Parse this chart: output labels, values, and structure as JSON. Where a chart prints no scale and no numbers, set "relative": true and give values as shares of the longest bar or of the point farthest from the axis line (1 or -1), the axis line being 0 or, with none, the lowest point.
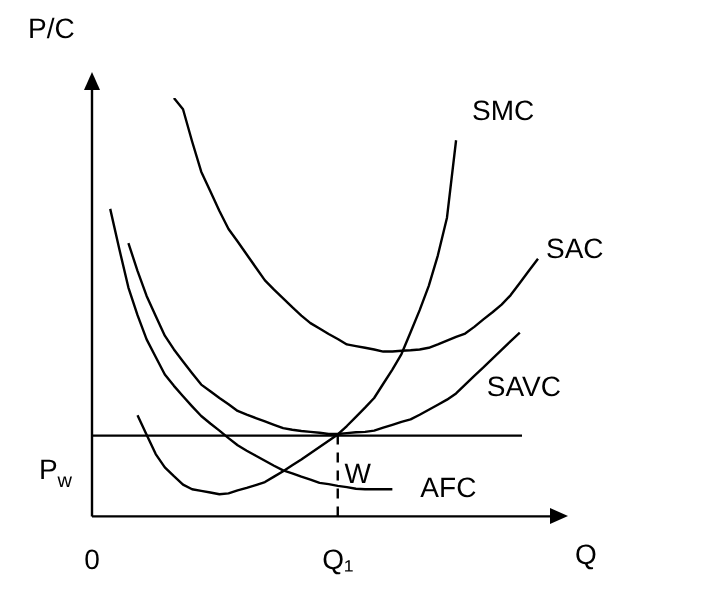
{
  "chart_data": {
    "type": "line",
    "relative": true,
    "xlabel": "Q",
    "ylabel": "P/C",
    "legend": false,
    "grid": false,
    "marker": "none",
    "line_style": "solid",
    "categories": [
      "0",
      null,
      null,
      null,
      null,
      null,
      null,
      null,
      null,
      null,
      null,
      null,
      null,
      null,
      null,
      null,
      null,
      null,
      null,
      null,
      null,
      null,
      null,
      null,
      null,
      null,
      null,
      "Q₁",
      null,
      null,
      null,
      null,
      null,
      null,
      null,
      null,
      null,
      null,
      null,
      null,
      null,
      null,
      null,
      null,
      null,
      null,
      null,
      null,
      null,
      null
    ],
    "series": [
      {
        "name": "SMC",
        "color": "#000000",
        "values": [
          null,
          null,
          null,
          null,
          null,
          0.242,
          0.195,
          0.149,
          0.117,
          0.096,
          0.076,
          0.065,
          0.061,
          0.057,
          0.053,
          0.055,
          0.062,
          0.068,
          0.075,
          0.082,
          0.095,
          0.108,
          0.122,
          0.136,
          0.151,
          0.166,
          0.181,
          0.196,
          0.216,
          0.238,
          0.26,
          0.283,
          0.317,
          0.351,
          0.388,
          0.44,
          0.493,
          0.551,
          0.624,
          0.714,
          0.899,
          null,
          null,
          null,
          null,
          null,
          null,
          null,
          null,
          null
        ]
      },
      {
        "name": "SAC",
        "color": "#000000",
        "values": [
          null,
          null,
          null,
          null,
          null,
          null,
          null,
          null,
          null,
          1,
          0.973,
          0.896,
          0.824,
          0.777,
          0.73,
          0.687,
          0.657,
          0.626,
          0.595,
          0.564,
          0.542,
          0.521,
          0.5,
          0.48,
          0.462,
          0.449,
          0.436,
          0.424,
          0.411,
          0.407,
          0.403,
          0.399,
          0.394,
          0.394,
          0.396,
          0.397,
          0.399,
          0.403,
          0.411,
          0.42,
          0.429,
          0.437,
          0.453,
          0.471,
          0.488,
          0.506,
          0.529,
          0.558,
          0.587,
          0.616
        ]
      },
      {
        "name": "SAVC",
        "color": "#000000",
        "values": [
          null,
          null,
          null,
          null,
          0.653,
          0.587,
          0.527,
          0.479,
          0.432,
          0.399,
          0.37,
          0.342,
          0.315,
          0.299,
          0.283,
          0.268,
          0.252,
          0.243,
          0.235,
          0.227,
          0.219,
          0.211,
          0.207,
          0.204,
          0.202,
          0.2,
          0.197,
          0.197,
          0.199,
          0.201,
          0.202,
          0.205,
          0.212,
          0.219,
          0.226,
          0.232,
          0.243,
          0.255,
          0.267,
          0.279,
          0.294,
          0.315,
          0.336,
          0.356,
          0.377,
          0.398,
          0.419,
          0.439,
          null,
          null
        ]
      },
      {
        "name": "AFC",
        "color": "#000000",
        "values": [
          null,
          null,
          0.735,
          0.639,
          0.547,
          0.481,
          0.423,
          0.381,
          0.339,
          0.312,
          0.287,
          0.263,
          0.24,
          0.222,
          0.205,
          0.187,
          0.17,
          0.157,
          0.145,
          0.133,
          0.121,
          0.11,
          0.103,
          0.095,
          0.088,
          0.08,
          0.077,
          0.073,
          0.07,
          0.066,
          0.065,
          0.065,
          0.065,
          0.065,
          null,
          null,
          null,
          null,
          null,
          null,
          null,
          null,
          null,
          null,
          null,
          null,
          null,
          null,
          null,
          null
        ]
      }
    ],
    "ref_lines": [
      {
        "axis": "y",
        "value": 0.193,
        "label": "P$_{w}$",
        "color": "#000000"
      },
      {
        "axis": "x",
        "value": "Q₁",
        "color": "#000000",
        "line_style": "dashed"
      }
    ],
    "annotations": [
      {
        "text": "W",
        "x": "Q₁",
        "y": 0.098
      }
    ]
  }
}
